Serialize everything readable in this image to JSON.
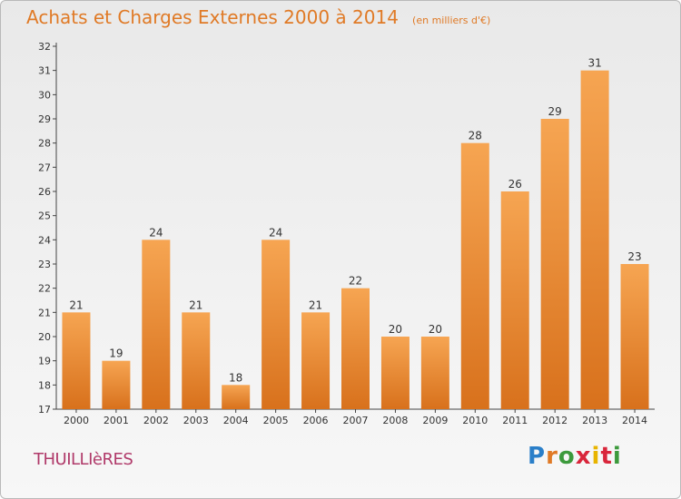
{
  "header": {
    "title": "Achats et Charges Externes 2000 à 2014",
    "subtitle": "(en milliers d'€)"
  },
  "footer": {
    "commune": "THUILLIèRES",
    "brand": [
      "P",
      "r",
      "o",
      "x",
      "i",
      "t",
      "i"
    ],
    "brand_colors": [
      "#2a7fc9",
      "#e07a26",
      "#3c9a3c",
      "#d9263b",
      "#e8b400",
      "#d9263b",
      "#3c9a3c"
    ]
  },
  "colors": {
    "bar_top": "#f6a552",
    "bar_bottom": "#d8711c",
    "axis": "#444444",
    "grid": "#dddddd"
  },
  "chart_data": {
    "type": "bar",
    "title": "Achats et Charges Externes 2000 à 2014",
    "subtitle": "(en milliers d'€)",
    "categories": [
      "2000",
      "2001",
      "2002",
      "2003",
      "2004",
      "2005",
      "2006",
      "2007",
      "2008",
      "2009",
      "2010",
      "2011",
      "2012",
      "2013",
      "2014"
    ],
    "values": [
      21,
      19,
      24,
      21,
      18,
      24,
      21,
      22,
      20,
      20,
      28,
      26,
      29,
      31,
      23
    ],
    "ylim": [
      17,
      32
    ],
    "yticks": [
      17,
      18,
      19,
      20,
      21,
      22,
      23,
      24,
      25,
      26,
      27,
      28,
      29,
      30,
      31,
      32
    ],
    "grid": false,
    "data_labels": true
  }
}
